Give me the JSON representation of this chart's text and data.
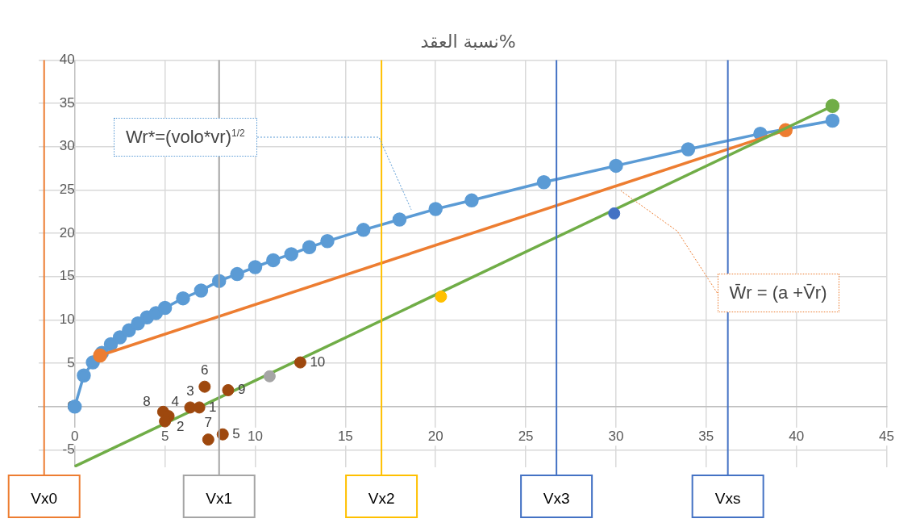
{
  "chart_data": {
    "type": "line",
    "title": "نسبة العقد%",
    "xlim": [
      -2,
      45
    ],
    "xticks": [
      0,
      5,
      10,
      15,
      20,
      25,
      30,
      35,
      40,
      45
    ],
    "ylim": [
      -7,
      40
    ],
    "yticks": [
      -5,
      0,
      5,
      10,
      15,
      20,
      25,
      30,
      35,
      40
    ],
    "grid": true,
    "legend": false,
    "marker": "circle",
    "series": [
      {
        "color": "#5b9bd5",
        "x": [
          0,
          0.5,
          1,
          1.5,
          2,
          2.5,
          3,
          3.5,
          4,
          4.5,
          5,
          6,
          7,
          8,
          9,
          10,
          11,
          12,
          13,
          14,
          16,
          18,
          20,
          22,
          26,
          30,
          34,
          38,
          42
        ],
        "values": [
          0,
          3.6,
          5.1,
          6.2,
          7.2,
          8,
          8.8,
          9.6,
          10.3,
          10.8,
          11.4,
          12.5,
          13.4,
          14.5,
          15.3,
          16.1,
          16.9,
          17.6,
          18.4,
          19.1,
          20.4,
          21.6,
          22.8,
          23.8,
          25.9,
          27.8,
          29.7,
          31.5,
          33
        ]
      },
      {
        "color": "#ed7d31",
        "x": [
          1.4,
          39.4
        ],
        "values": [
          5.9,
          31.9
        ]
      },
      {
        "color": "#70ad47",
        "x": [
          0,
          42
        ],
        "values": [
          -6.9,
          34.7
        ],
        "colors": [
          null,
          "#70ad47"
        ]
      },
      {
        "type": "scatter",
        "color": "#a5a5a5",
        "x": [
          10.8
        ],
        "values": [
          3.5
        ]
      },
      {
        "type": "scatter",
        "color": "#ffc000",
        "x": [
          20.3
        ],
        "values": [
          12.7
        ]
      },
      {
        "type": "scatter",
        "color": "#4472c4",
        "x": [
          29.9
        ],
        "values": [
          22.3
        ]
      },
      {
        "type": "scatter",
        "color": "#9e480e",
        "x": [
          4.9,
          5.2,
          5,
          6.4,
          6.9,
          7.2,
          8.5,
          7.4,
          8.2,
          12.5
        ],
        "values": [
          -0.6,
          -1.1,
          -1.7,
          -0.1,
          -0.1,
          2.3,
          1.9,
          -3.8,
          -3.2,
          5.1
        ]
      }
    ],
    "ref_lines": [
      {
        "axis": "x",
        "value": -1.7,
        "label": "Vx0",
        "color": "#ed7d31"
      },
      {
        "axis": "x",
        "value": 8,
        "label": "Vx1",
        "color": "#a5a5a5"
      },
      {
        "axis": "x",
        "value": 17,
        "label": "Vx2",
        "color": "#ffc000"
      },
      {
        "axis": "x",
        "value": 26.7,
        "label": "Vx3",
        "color": "#4472c4"
      },
      {
        "axis": "x",
        "value": 36.2,
        "label": "Vxs",
        "color": "#4472c4"
      }
    ],
    "annotations": [
      "Wr*=(volo*vr)$^{1/2}$",
      "W̄r = (a +V̄r)",
      {
        "text": "4",
        "x": 4.9,
        "y": -0.6
      },
      {
        "text": "2",
        "x": 5.2,
        "y": -1.1
      },
      {
        "text": "8",
        "x": 5,
        "y": -1.7
      },
      {
        "text": "3",
        "x": 6.4,
        "y": -0.1
      },
      {
        "text": "1",
        "x": 6.9,
        "y": -0.1
      },
      {
        "text": "6",
        "x": 7.2,
        "y": 2.3
      },
      {
        "text": "9",
        "x": 8.5,
        "y": 1.9
      },
      {
        "text": "7",
        "x": 7.4,
        "y": -3.8
      },
      {
        "text": "5",
        "x": 8.2,
        "y": -3.2
      },
      {
        "text": "10",
        "x": 12.5,
        "y": 5.1
      }
    ]
  }
}
